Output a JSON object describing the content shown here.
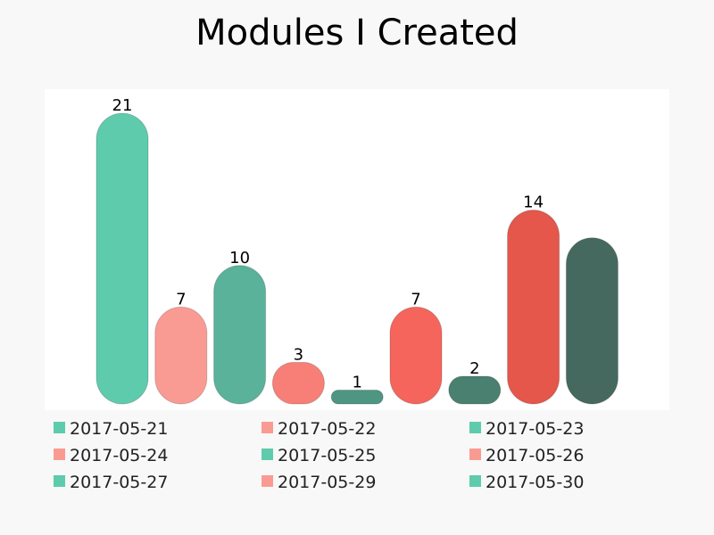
{
  "chart_data": {
    "type": "bar",
    "title": "Modules I Created",
    "xlabel": "",
    "ylabel": "",
    "ylim": [
      0,
      21
    ],
    "grid": false,
    "legend_position": "bottom",
    "series": [
      {
        "name": "2017-05-21",
        "value": 21,
        "label": "21",
        "color": "#5ecbad"
      },
      {
        "name": "2017-05-22",
        "value": 7,
        "label": "7",
        "color": "#fa9b93"
      },
      {
        "name": "2017-05-23",
        "value": 10,
        "label": "10",
        "color": "#5ab29b"
      },
      {
        "name": "2017-05-24",
        "value": 3,
        "label": "3",
        "color": "#f77f77"
      },
      {
        "name": "2017-05-25",
        "value": 1,
        "label": "1",
        "color": "#4e9582"
      },
      {
        "name": "2017-05-26",
        "value": 7,
        "label": "7",
        "color": "#f5655b"
      },
      {
        "name": "2017-05-27",
        "value": 2,
        "label": "2",
        "color": "#4a8070"
      },
      {
        "name": "2017-05-29",
        "value": 14,
        "label": "14",
        "color": "#e5564b"
      },
      {
        "name": "2017-05-30",
        "value": 12,
        "label": "",
        "color": "#46695f"
      }
    ],
    "legend_colors": [
      "#5ecbad",
      "#fa9b93",
      "#5ecbad",
      "#fa9b93",
      "#5ecbad",
      "#fa9b93",
      "#5ecbad",
      "#fa9b93",
      "#5ecbad"
    ],
    "bar_border_color": "rgba(0,0,0,0.18)",
    "plot_background": "#ffffff",
    "page_background": "#f8f8f8"
  }
}
